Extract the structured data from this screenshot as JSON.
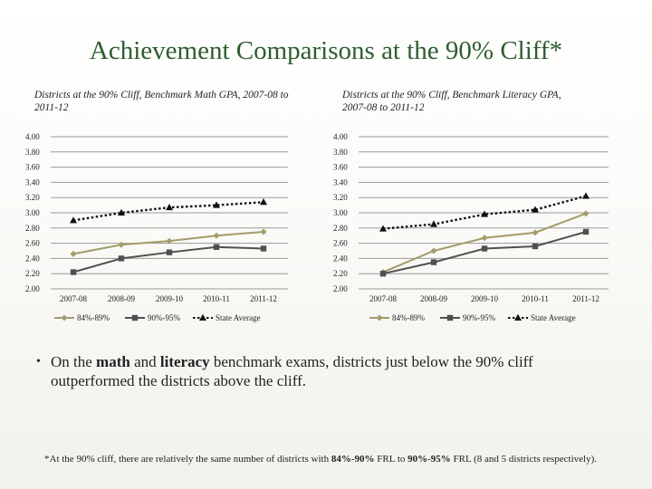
{
  "slide": {
    "title": "Achievement Comparisons at the 90% Cliff*"
  },
  "chart_data": [
    {
      "type": "line",
      "title": "Districts at the 90% Cliff, Benchmark Math GPA, 2007-08 to 2011-12",
      "xlabel": "",
      "ylabel": "",
      "categories": [
        "2007-08",
        "2008-09",
        "2009-10",
        "2010-11",
        "2011-12"
      ],
      "ylim": [
        2.0,
        4.0
      ],
      "yticks": [
        "2.00",
        "2.20",
        "2.40",
        "2.60",
        "2.80",
        "3.00",
        "3.20",
        "3.40",
        "3.60",
        "3.80",
        "4.00"
      ],
      "grid": true,
      "legend": "bottom",
      "series": [
        {
          "name": "84%-89%",
          "values": [
            2.46,
            2.58,
            2.63,
            2.7,
            2.75
          ],
          "color": "#a39c6c",
          "marker": "diamond",
          "dash": "solid"
        },
        {
          "name": "90%-95%",
          "values": [
            2.22,
            2.4,
            2.48,
            2.55,
            2.53
          ],
          "color": "#505050",
          "marker": "square",
          "dash": "solid"
        },
        {
          "name": "State Average",
          "values": [
            2.9,
            3.0,
            3.07,
            3.1,
            3.14
          ],
          "color": "#111111",
          "marker": "triangle",
          "dash": "dotted"
        }
      ]
    },
    {
      "type": "line",
      "title": "Districts at the 90% Cliff, Benchmark Literacy GPA, 2007-08 to 2011-12",
      "xlabel": "",
      "ylabel": "",
      "categories": [
        "2007-08",
        "2008-09",
        "2009-10",
        "2010-11",
        "2011-12"
      ],
      "ylim": [
        2.0,
        4.0
      ],
      "yticks": [
        "2.00",
        "2.20",
        "2.40",
        "2.60",
        "2.80",
        "3.00",
        "3.20",
        "3.40",
        "3.60",
        "3.80",
        "4.00"
      ],
      "grid": true,
      "legend": "bottom",
      "series": [
        {
          "name": "84%-89%",
          "values": [
            2.22,
            2.5,
            2.67,
            2.74,
            2.99
          ],
          "color": "#a39c6c",
          "marker": "diamond",
          "dash": "solid"
        },
        {
          "name": "90%-95%",
          "values": [
            2.2,
            2.35,
            2.53,
            2.56,
            2.75
          ],
          "color": "#505050",
          "marker": "square",
          "dash": "solid"
        },
        {
          "name": "State Average",
          "values": [
            2.79,
            2.85,
            2.98,
            3.04,
            3.22
          ],
          "color": "#111111",
          "marker": "triangle",
          "dash": "dotted"
        }
      ]
    }
  ],
  "bullet": {
    "pre": "On the ",
    "bold1": "math",
    "mid1": " and ",
    "bold2": "literacy",
    "post": " benchmark exams, districts just below the 90% cliff outperformed the districts above the cliff."
  },
  "footnote": {
    "pre": "*At the 90% cliff, there are relatively the same number of districts with ",
    "bold1": "84%-90%",
    "mid1": " FRL to ",
    "bold2": "90%-95%",
    "post": " FRL (8 and 5 districts respectively)."
  }
}
